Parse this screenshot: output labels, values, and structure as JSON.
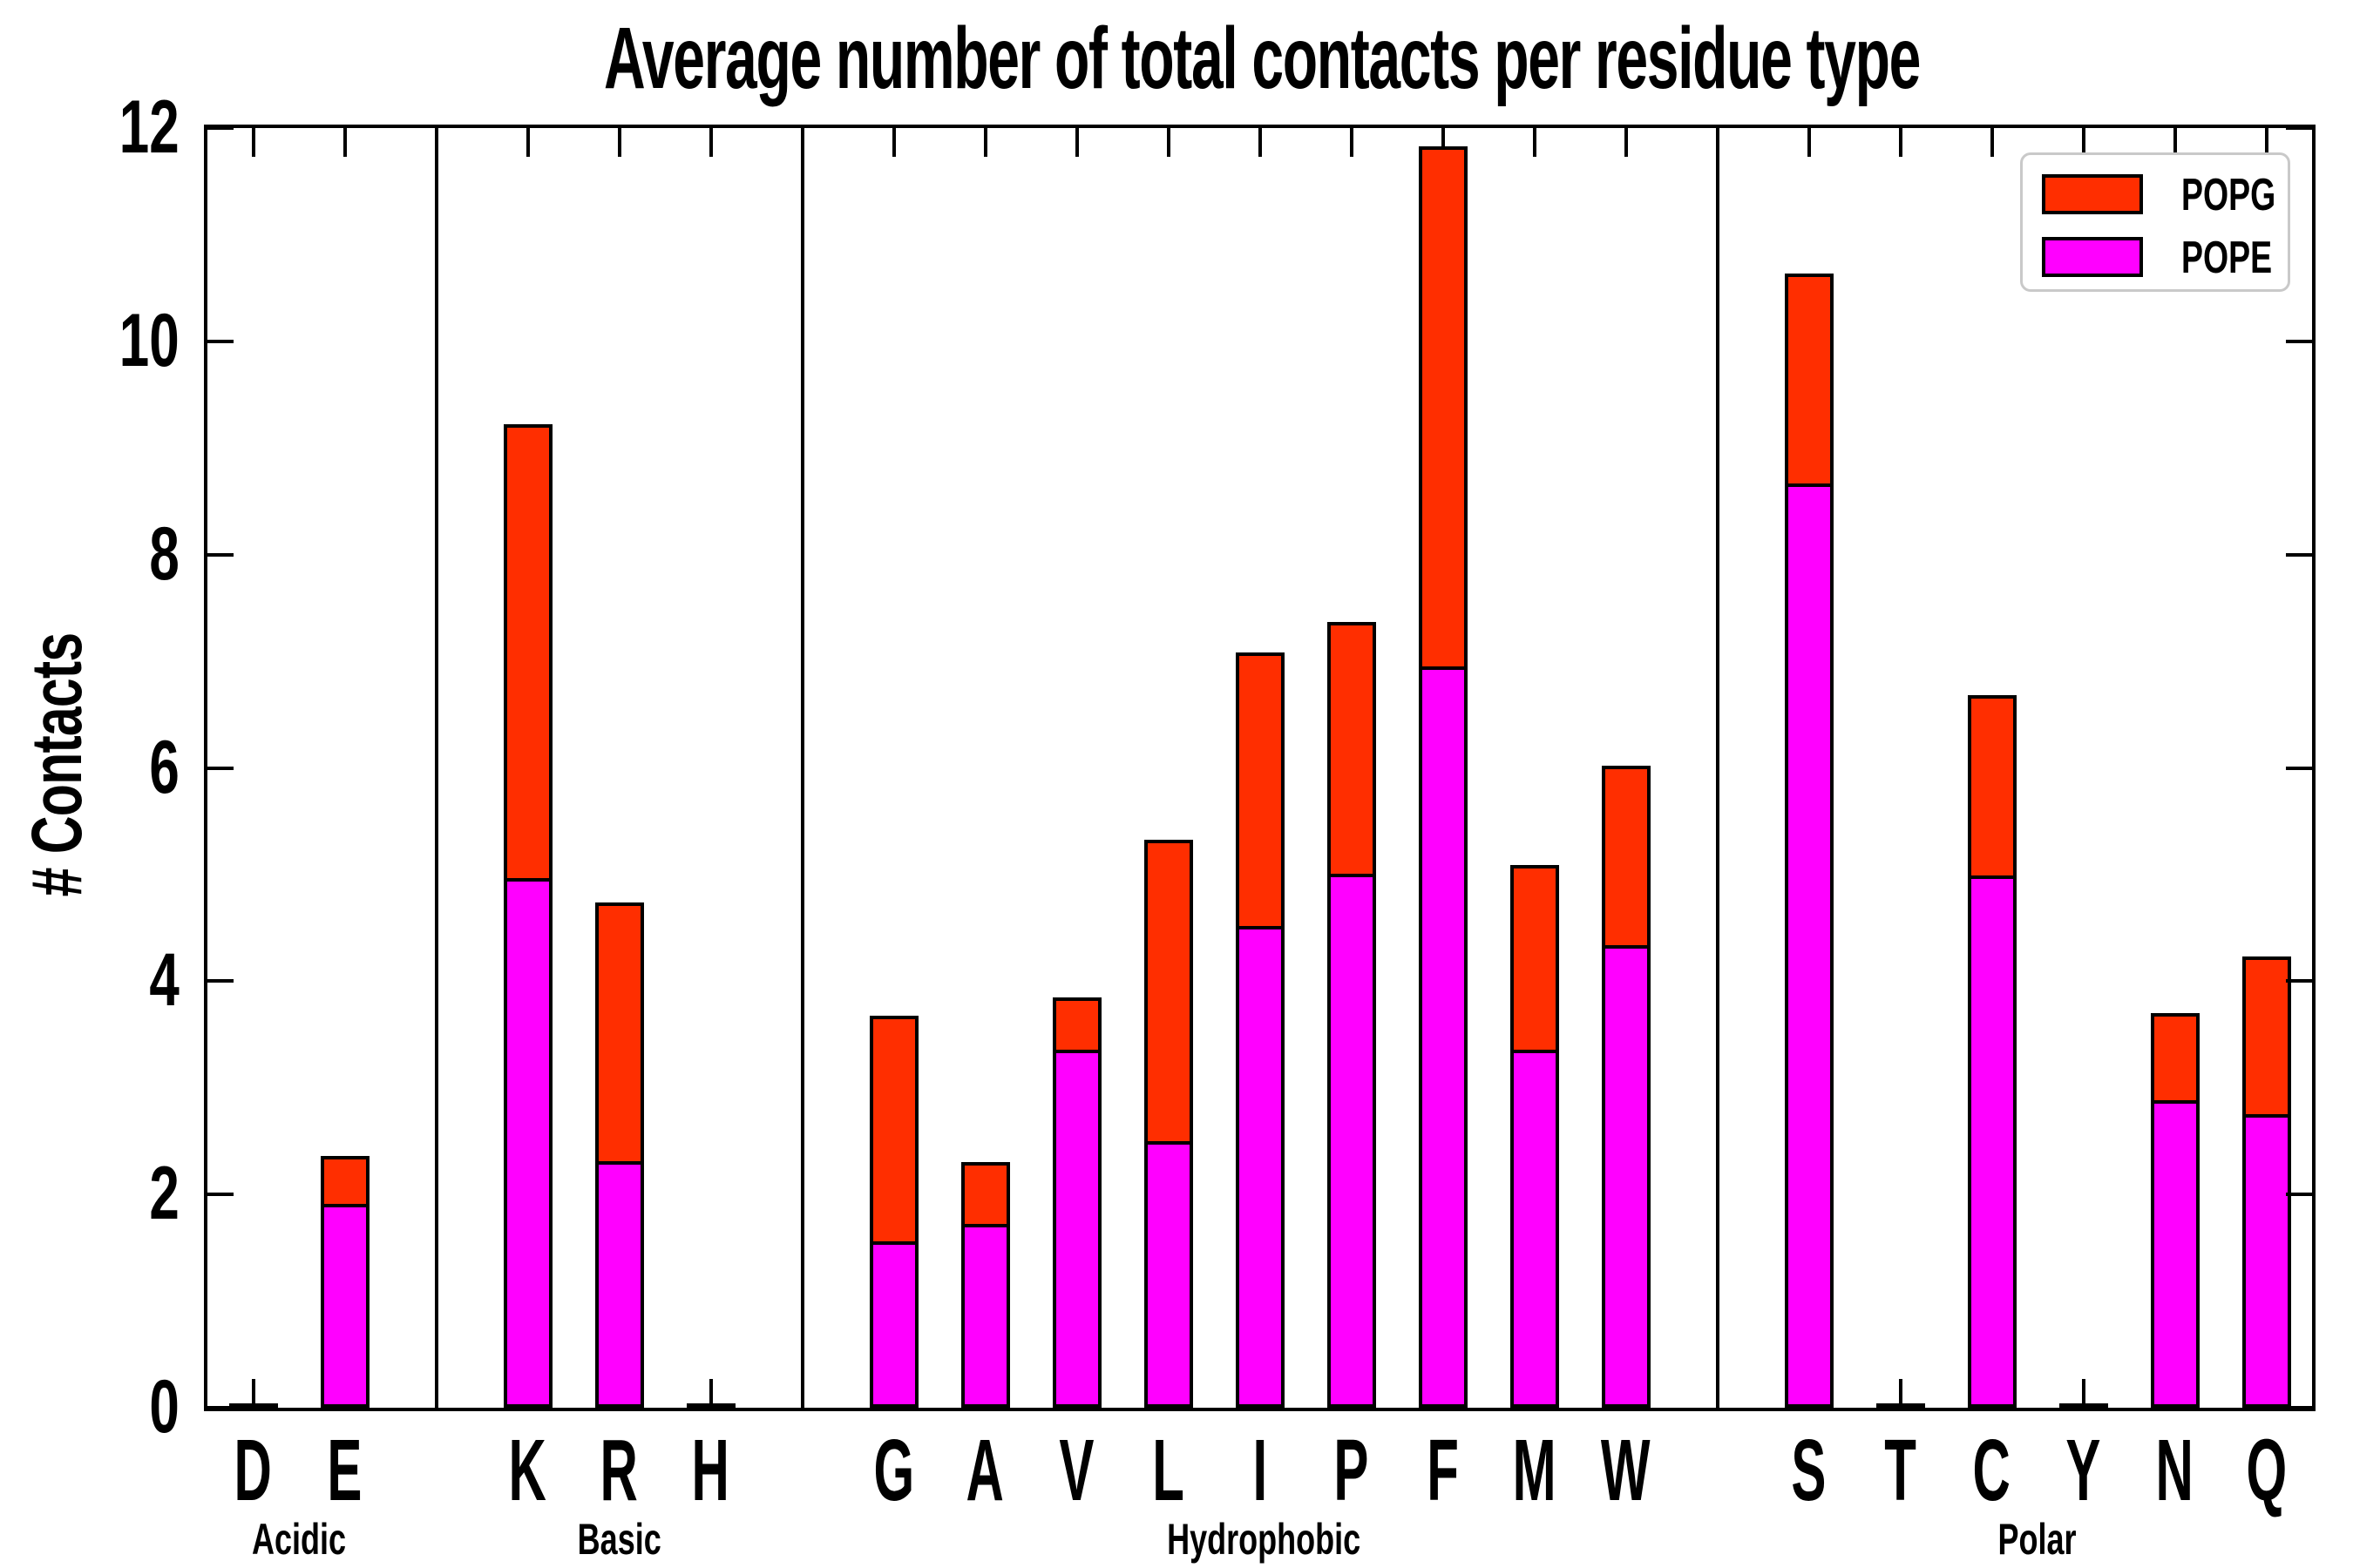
{
  "title": "Average number of total contacts per residue type",
  "ylabel": "# Contacts",
  "legend": {
    "position": "upper right",
    "entries": [
      "POPG",
      "POPE"
    ]
  },
  "colors": {
    "POPG": "#ff2e00",
    "POPE": "#ff00ff",
    "axis": "#000000",
    "legend_border": "#c9c9c9",
    "background": "#ffffff"
  },
  "chart_data": {
    "type": "bar",
    "stacked": true,
    "title": "Average number of total contacts per residue type",
    "xlabel": "",
    "ylabel": "# Contacts",
    "ylim": [
      0,
      12
    ],
    "yticks": [
      0,
      2,
      4,
      6,
      8,
      10,
      12
    ],
    "grid": false,
    "legend_position": "upper right",
    "categories": [
      "D",
      "E",
      "K",
      "R",
      "H",
      "G",
      "A",
      "V",
      "L",
      "I",
      "P",
      "F",
      "M",
      "W",
      "S",
      "T",
      "C",
      "Y",
      "N",
      "Q"
    ],
    "groups": [
      {
        "label": "Acidic",
        "members": [
          "D",
          "E"
        ]
      },
      {
        "label": "Basic",
        "members": [
          "K",
          "R",
          "H"
        ]
      },
      {
        "label": "Hydrophobic",
        "members": [
          "G",
          "A",
          "V",
          "L",
          "I",
          "P",
          "F",
          "M",
          "W"
        ]
      },
      {
        "label": "Polar",
        "members": [
          "S",
          "T",
          "C",
          "Y",
          "N",
          "Q"
        ]
      }
    ],
    "series": [
      {
        "name": "POPE",
        "color": "#ff00ff",
        "values": [
          0.02,
          1.91,
          4.97,
          2.31,
          0.02,
          1.56,
          1.72,
          3.36,
          2.5,
          4.52,
          5.01,
          6.95,
          3.36,
          4.34,
          8.67,
          0.02,
          4.99,
          0.02,
          2.88,
          2.75
        ]
      },
      {
        "name": "POPG",
        "color": "#ff2e00",
        "values": [
          0.0,
          0.45,
          4.25,
          2.43,
          0.0,
          2.12,
          0.58,
          0.49,
          2.83,
          2.56,
          2.36,
          4.88,
          1.73,
          1.68,
          1.97,
          0.0,
          1.69,
          0.0,
          0.82,
          1.48
        ]
      }
    ],
    "totals": [
      0.02,
      2.36,
      9.22,
      4.74,
      0.02,
      3.68,
      2.3,
      3.85,
      5.33,
      7.08,
      7.37,
      11.83,
      5.09,
      6.02,
      10.64,
      0.02,
      6.68,
      0.02,
      3.7,
      4.23
    ]
  }
}
